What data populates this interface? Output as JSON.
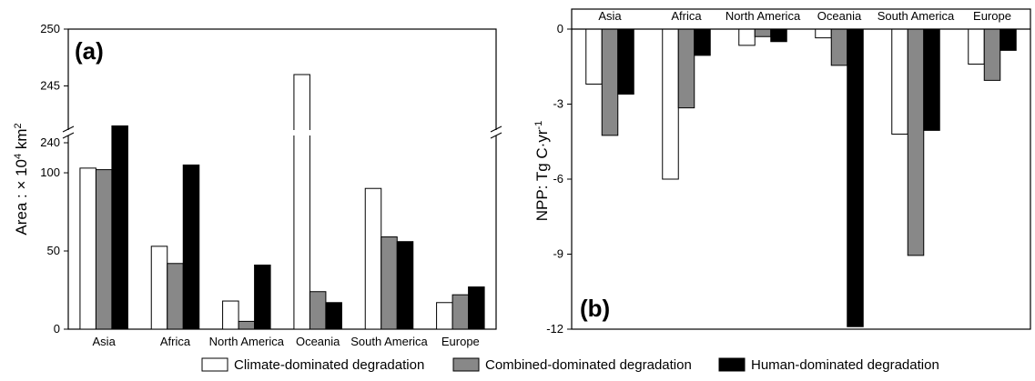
{
  "colors": {
    "climate": "#ffffff",
    "combined": "#888888",
    "human": "#000000",
    "stroke": "#000000"
  },
  "legend": [
    {
      "key": "climate",
      "label": "Climate-dominated degradation"
    },
    {
      "key": "combined",
      "label": "Combined-dominated degradation"
    },
    {
      "key": "human",
      "label": "Human-dominated degradation"
    }
  ],
  "chart_data": [
    {
      "type": "bar",
      "panel_label": "(a)",
      "ylabel_main": "Area : × 10",
      "ylabel_sup": "4",
      "ylabel_unit": " km",
      "ylabel_sup2": "2",
      "categories": [
        "Asia",
        "Africa",
        "North America",
        "Oceania",
        "South America",
        "Europe"
      ],
      "y_axis_broken": true,
      "ylim_lower": [
        0,
        132
      ],
      "ylim_upper": [
        240,
        250
      ],
      "yticks_lower": [
        "0",
        "50",
        "100"
      ],
      "yticks_upper": [
        "240",
        "245",
        "250"
      ],
      "series": [
        {
          "key": "climate",
          "name": "Climate-dominated degradation",
          "values": [
            103,
            53,
            18,
            246,
            90,
            17
          ]
        },
        {
          "key": "combined",
          "name": "Combined-dominated degradation",
          "values": [
            102,
            42,
            5,
            24,
            59,
            22
          ]
        },
        {
          "key": "human",
          "name": "Human-dominated degradation",
          "values": [
            130,
            105,
            41,
            17,
            56,
            27
          ]
        }
      ]
    },
    {
      "type": "bar",
      "panel_label": "(b)",
      "ylabel_main": "NPP: Tg C·yr",
      "ylabel_sup": "-1",
      "categories": [
        "Asia",
        "Africa",
        "North America",
        "Oceania",
        "South America",
        "Europe"
      ],
      "ylim": [
        -12,
        0
      ],
      "yticks": [
        "0",
        "-3",
        "-6",
        "-9",
        "-12"
      ],
      "series": [
        {
          "key": "climate",
          "name": "Climate-dominated degradation",
          "values": [
            -2.2,
            -6.0,
            -0.65,
            -0.35,
            -4.2,
            -1.4
          ]
        },
        {
          "key": "combined",
          "name": "Combined-dominated degradation",
          "values": [
            -4.25,
            -3.15,
            -0.3,
            -1.45,
            -9.05,
            -2.05
          ]
        },
        {
          "key": "human",
          "name": "Human-dominated degradation",
          "values": [
            -2.6,
            -1.05,
            -0.5,
            -11.9,
            -4.05,
            -0.85
          ]
        }
      ]
    }
  ]
}
